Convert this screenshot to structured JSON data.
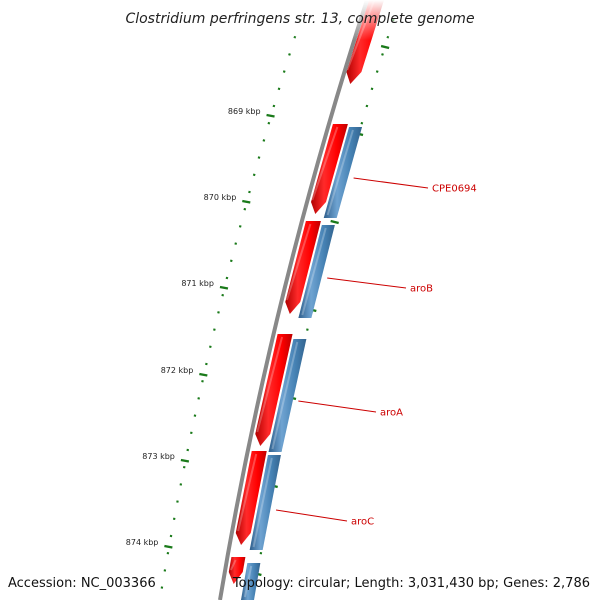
{
  "title": "Clostridium perfringens str. 13, complete genome",
  "accession": "Accession: NC_003366",
  "topology": "Topology: circular; Length: 3,031,430 bp; Genes: 2,786",
  "colors": {
    "backbone": "#808080",
    "forward_gene": "#ff0000",
    "reverse_gene": "#4682b4",
    "tick": "#1a7a1a",
    "label": "#cc0000"
  },
  "ticks": [
    {
      "label": "869 kbp"
    },
    {
      "label": "870 kbp"
    },
    {
      "label": "871 kbp"
    },
    {
      "label": "872 kbp"
    },
    {
      "label": "873 kbp"
    },
    {
      "label": "874 kbp"
    }
  ],
  "gene_labels": [
    {
      "name": "CPE0694"
    },
    {
      "name": "aroB"
    },
    {
      "name": "aroA"
    },
    {
      "name": "aroC"
    }
  ]
}
